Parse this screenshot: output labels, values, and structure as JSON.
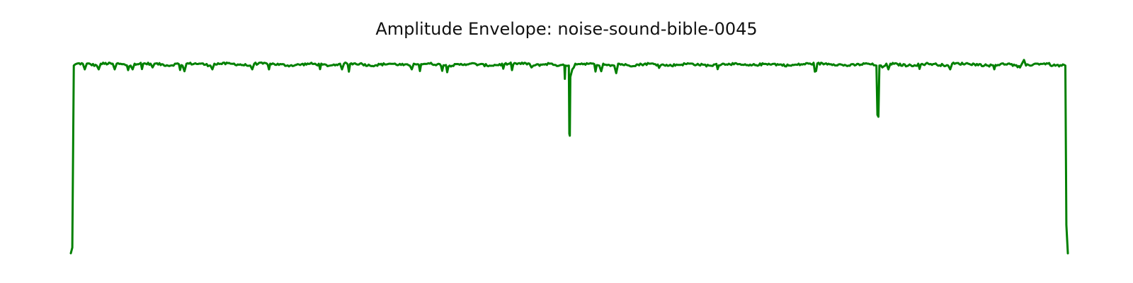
{
  "chart_data": {
    "type": "line",
    "title": "Amplitude Envelope: noise-sound-bible-0045",
    "xlabel": "",
    "ylabel": "",
    "axes_visible": false,
    "grid": false,
    "legend": "none",
    "xlim": [
      0,
      1
    ],
    "ylim": [
      0,
      1
    ],
    "series": [
      {
        "color": "#008000",
        "points": [
          [
            0.0,
            0.0
          ],
          [
            0.0015,
            0.03
          ],
          [
            0.003,
            0.99
          ],
          [
            0.006,
            1.0
          ],
          [
            0.012,
            1.0
          ],
          [
            0.014,
            0.97
          ],
          [
            0.016,
            1.0
          ],
          [
            0.026,
            0.99
          ],
          [
            0.028,
            0.97
          ],
          [
            0.03,
            1.0
          ],
          [
            0.042,
            1.0
          ],
          [
            0.044,
            0.97
          ],
          [
            0.046,
            1.0
          ],
          [
            0.06,
            0.99
          ],
          [
            0.062,
            0.97
          ],
          [
            0.064,
            1.0
          ],
          [
            0.08,
            1.0
          ],
          [
            0.082,
            0.98
          ],
          [
            0.084,
            1.0
          ],
          [
            0.1,
            0.99
          ],
          [
            0.106,
            1.0
          ],
          [
            0.112,
            0.99
          ],
          [
            0.114,
            0.96
          ],
          [
            0.116,
            1.0
          ],
          [
            0.13,
            1.0
          ],
          [
            0.14,
            0.99
          ],
          [
            0.142,
            0.97
          ],
          [
            0.144,
            1.0
          ],
          [
            0.16,
            1.0
          ],
          [
            0.18,
            0.99
          ],
          [
            0.182,
            0.97
          ],
          [
            0.184,
            1.0
          ],
          [
            0.2,
            1.0
          ],
          [
            0.22,
            0.99
          ],
          [
            0.24,
            1.0
          ],
          [
            0.26,
            0.99
          ],
          [
            0.27,
            1.0
          ],
          [
            0.272,
            0.97
          ],
          [
            0.274,
            1.0
          ],
          [
            0.29,
            1.0
          ],
          [
            0.3,
            0.99
          ],
          [
            0.32,
            1.0
          ],
          [
            0.34,
            0.99
          ],
          [
            0.342,
            0.97
          ],
          [
            0.344,
            1.0
          ],
          [
            0.36,
            1.0
          ],
          [
            0.38,
            0.99
          ],
          [
            0.4,
            1.0
          ],
          [
            0.42,
            0.99
          ],
          [
            0.44,
            1.0
          ],
          [
            0.46,
            1.0
          ],
          [
            0.462,
            0.98
          ],
          [
            0.464,
            0.99
          ],
          [
            0.48,
            1.0
          ],
          [
            0.49,
            0.99
          ],
          [
            0.495,
            0.99
          ],
          [
            0.4955,
            0.92
          ],
          [
            0.496,
            0.99
          ],
          [
            0.4995,
            0.99
          ],
          [
            0.5,
            0.63
          ],
          [
            0.5005,
            0.62
          ],
          [
            0.501,
            0.93
          ],
          [
            0.503,
            0.97
          ],
          [
            0.506,
            1.0
          ],
          [
            0.52,
            1.0
          ],
          [
            0.53,
            0.99
          ],
          [
            0.532,
            0.96
          ],
          [
            0.534,
            1.0
          ],
          [
            0.545,
            0.99
          ],
          [
            0.547,
            0.95
          ],
          [
            0.549,
            1.0
          ],
          [
            0.56,
            0.99
          ],
          [
            0.58,
            1.0
          ],
          [
            0.6,
            0.99
          ],
          [
            0.62,
            1.0
          ],
          [
            0.64,
            0.99
          ],
          [
            0.66,
            1.0
          ],
          [
            0.68,
            0.99
          ],
          [
            0.7,
            1.0
          ],
          [
            0.72,
            0.99
          ],
          [
            0.74,
            1.0
          ],
          [
            0.76,
            1.0
          ],
          [
            0.78,
            0.99
          ],
          [
            0.8,
            1.0
          ],
          [
            0.808,
            0.99
          ],
          [
            0.809,
            0.73
          ],
          [
            0.81,
            0.72
          ],
          [
            0.811,
            0.99
          ],
          [
            0.814,
            0.98
          ],
          [
            0.818,
            1.0
          ],
          [
            0.82,
            0.97
          ],
          [
            0.822,
            1.0
          ],
          [
            0.84,
            0.99
          ],
          [
            0.86,
            1.0
          ],
          [
            0.88,
            0.99
          ],
          [
            0.882,
            0.97
          ],
          [
            0.884,
            1.0
          ],
          [
            0.9,
            1.0
          ],
          [
            0.92,
            0.99
          ],
          [
            0.94,
            1.0
          ],
          [
            0.952,
            0.98
          ],
          [
            0.954,
            1.0
          ],
          [
            0.956,
            1.02
          ],
          [
            0.958,
            0.99
          ],
          [
            0.97,
            1.0
          ],
          [
            0.98,
            1.0
          ],
          [
            0.985,
            0.99
          ],
          [
            0.9975,
            0.99
          ],
          [
            0.9985,
            0.15
          ],
          [
            1.0,
            0.0
          ]
        ]
      }
    ]
  }
}
